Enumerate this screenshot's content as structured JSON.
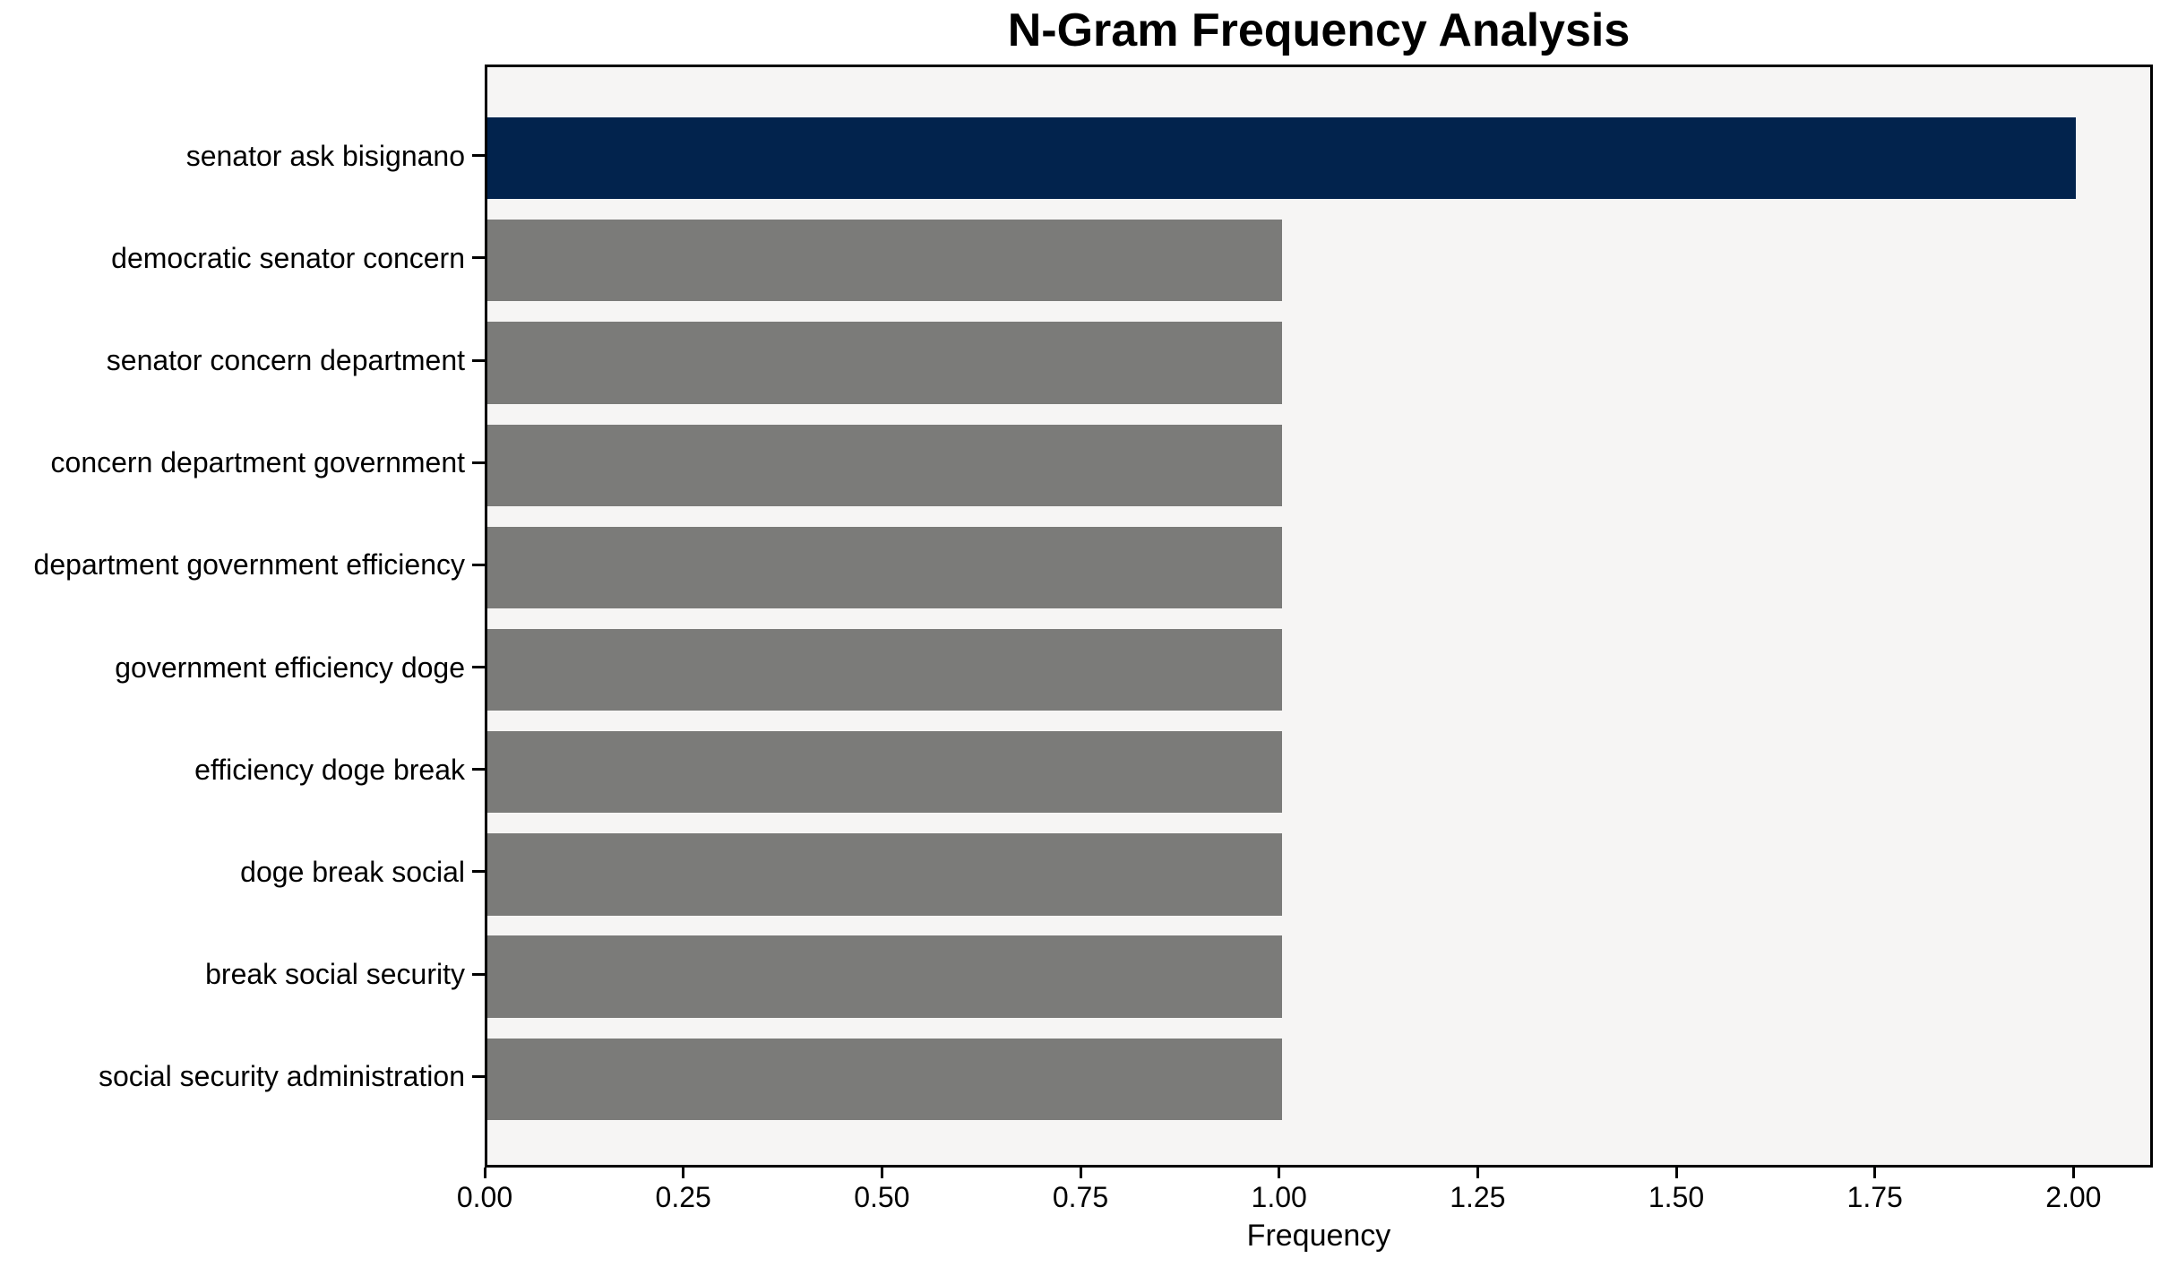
{
  "chart_data": {
    "type": "bar",
    "orientation": "horizontal",
    "title": "N-Gram Frequency Analysis",
    "xlabel": "Frequency",
    "ylabel": "",
    "categories": [
      "senator ask bisignano",
      "democratic senator concern",
      "senator concern department",
      "concern department government",
      "department government efficiency",
      "government efficiency doge",
      "efficiency doge break",
      "doge break social",
      "break social security",
      "social security administration"
    ],
    "values": [
      2,
      1,
      1,
      1,
      1,
      1,
      1,
      1,
      1,
      1
    ],
    "highlight_index": 0,
    "xlim": [
      0,
      2.1
    ],
    "xticks": [
      "0.00",
      "0.25",
      "0.50",
      "0.75",
      "1.00",
      "1.25",
      "1.50",
      "1.75",
      "2.00"
    ],
    "grid": false,
    "legend": null,
    "colors": {
      "highlight_bar": "#02234d",
      "default_bar": "#7b7b79",
      "plot_background": "#f6f5f4",
      "figure_background": "#ffffff",
      "spine": "#000000",
      "text": "#000000"
    }
  }
}
